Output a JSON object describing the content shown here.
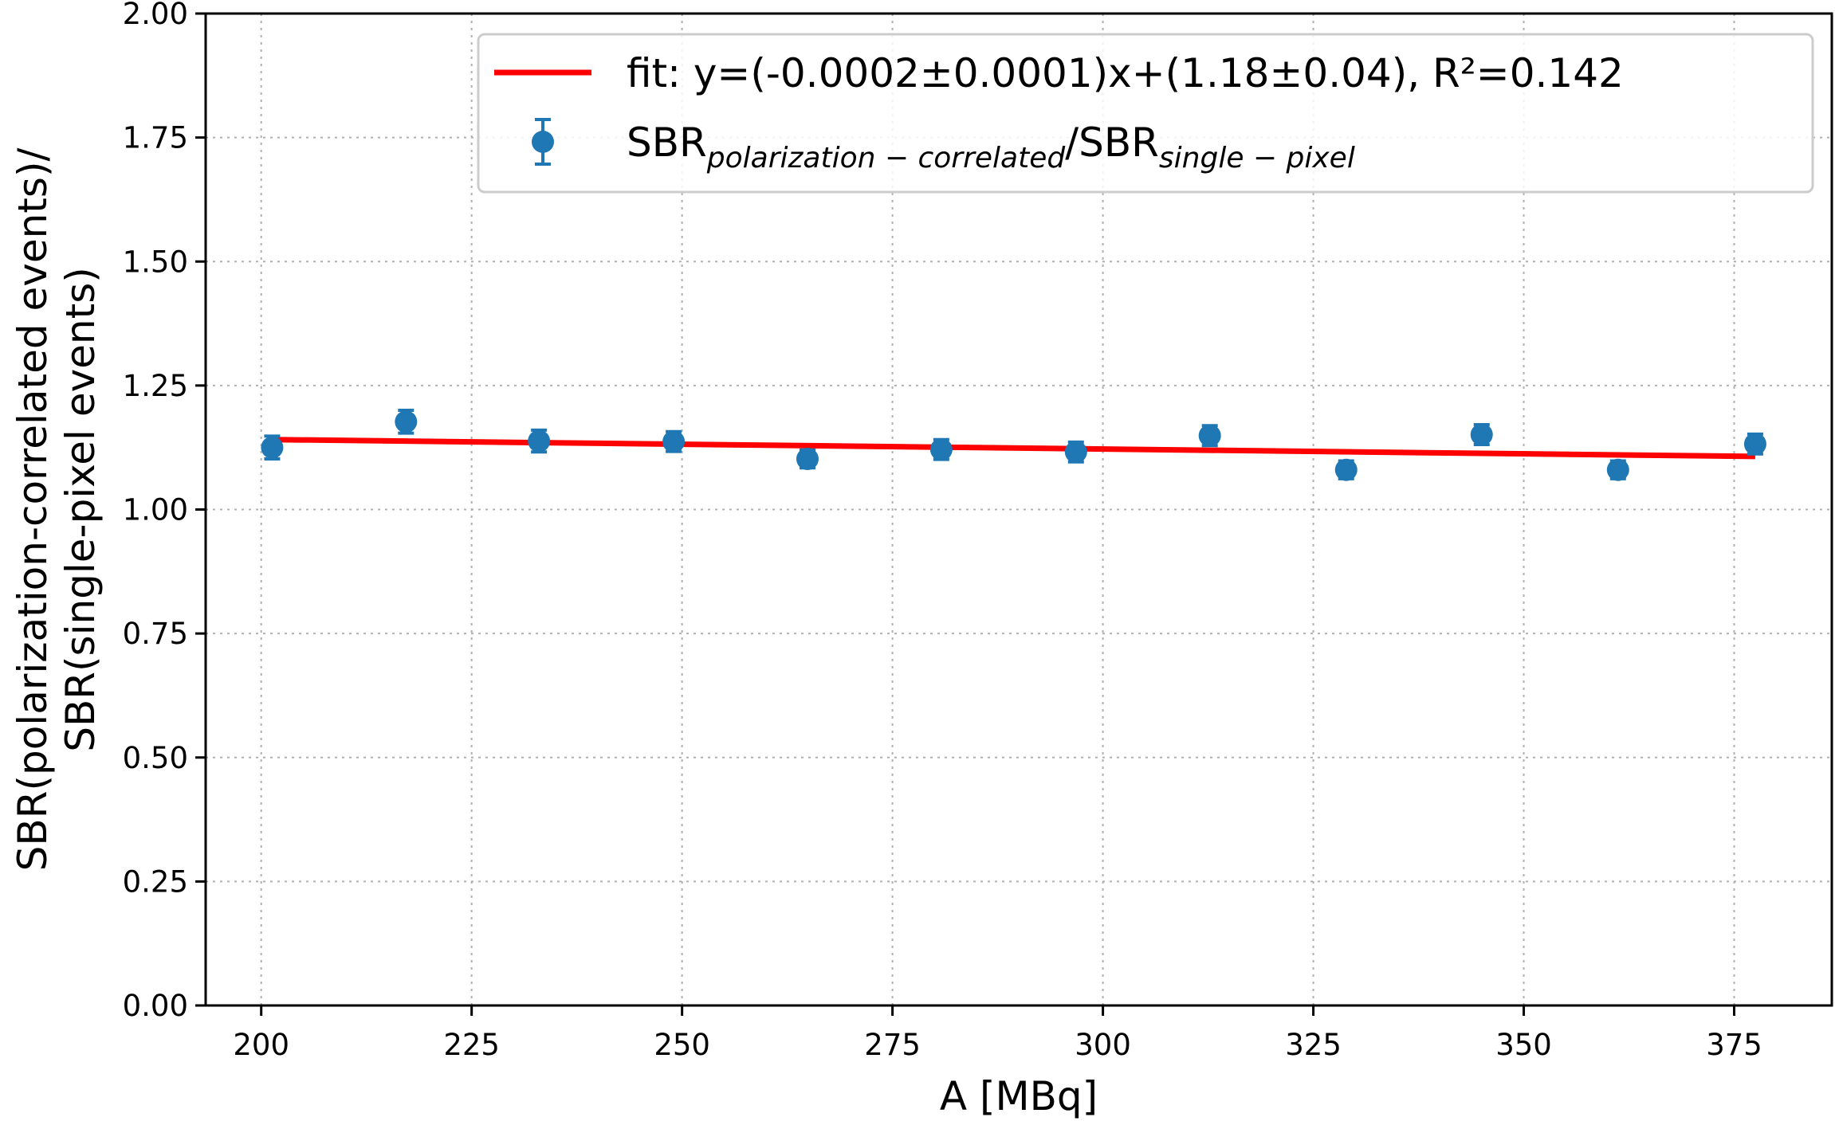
{
  "chart_data": {
    "type": "scatter",
    "xlabel": "A [MBq]",
    "ylabel_lines": [
      "SBR(polarization-correlated events)/",
      "SBR(single-pixel events)"
    ],
    "xlim": [
      193.4,
      386.6
    ],
    "ylim": [
      0,
      2
    ],
    "xticks": [
      200,
      225,
      250,
      275,
      300,
      325,
      350,
      375
    ],
    "xtick_labels": [
      "200",
      "225",
      "250",
      "275",
      "300",
      "325",
      "350",
      "375"
    ],
    "yticks": [
      0,
      0.25,
      0.5,
      0.75,
      1.0,
      1.25,
      1.5,
      1.75,
      2.0
    ],
    "ytick_labels": [
      "0.00",
      "0.25",
      "0.50",
      "0.75",
      "1.00",
      "1.25",
      "1.50",
      "1.75",
      "2.00"
    ],
    "grid": true,
    "legend_position": "top-right",
    "colors": {
      "points": "#1f77b4",
      "fit": "#ff0000"
    },
    "series": [
      {
        "kind": "errorbar",
        "legend_main": "SBR",
        "legend_sub1": "polarization − correlated",
        "legend_mid": "/SBR",
        "legend_sub2": "single − pixel",
        "x": [
          201.3,
          217.2,
          233.0,
          249.0,
          264.9,
          280.8,
          296.8,
          312.7,
          328.9,
          345.0,
          361.2,
          377.5
        ],
        "y": [
          1.125,
          1.177,
          1.138,
          1.137,
          1.102,
          1.121,
          1.116,
          1.149,
          1.08,
          1.151,
          1.08,
          1.132
        ],
        "yerr": [
          0.023,
          0.023,
          0.022,
          0.02,
          0.018,
          0.02,
          0.02,
          0.02,
          0.018,
          0.02,
          0.018,
          0.02
        ]
      },
      {
        "kind": "line",
        "legend_label": "fit: y=(-0.0002±0.0001)x+(1.18±0.04), R²=0.142",
        "x": [
          201.3,
          377.5
        ],
        "y": [
          1.141,
          1.107
        ]
      }
    ]
  }
}
